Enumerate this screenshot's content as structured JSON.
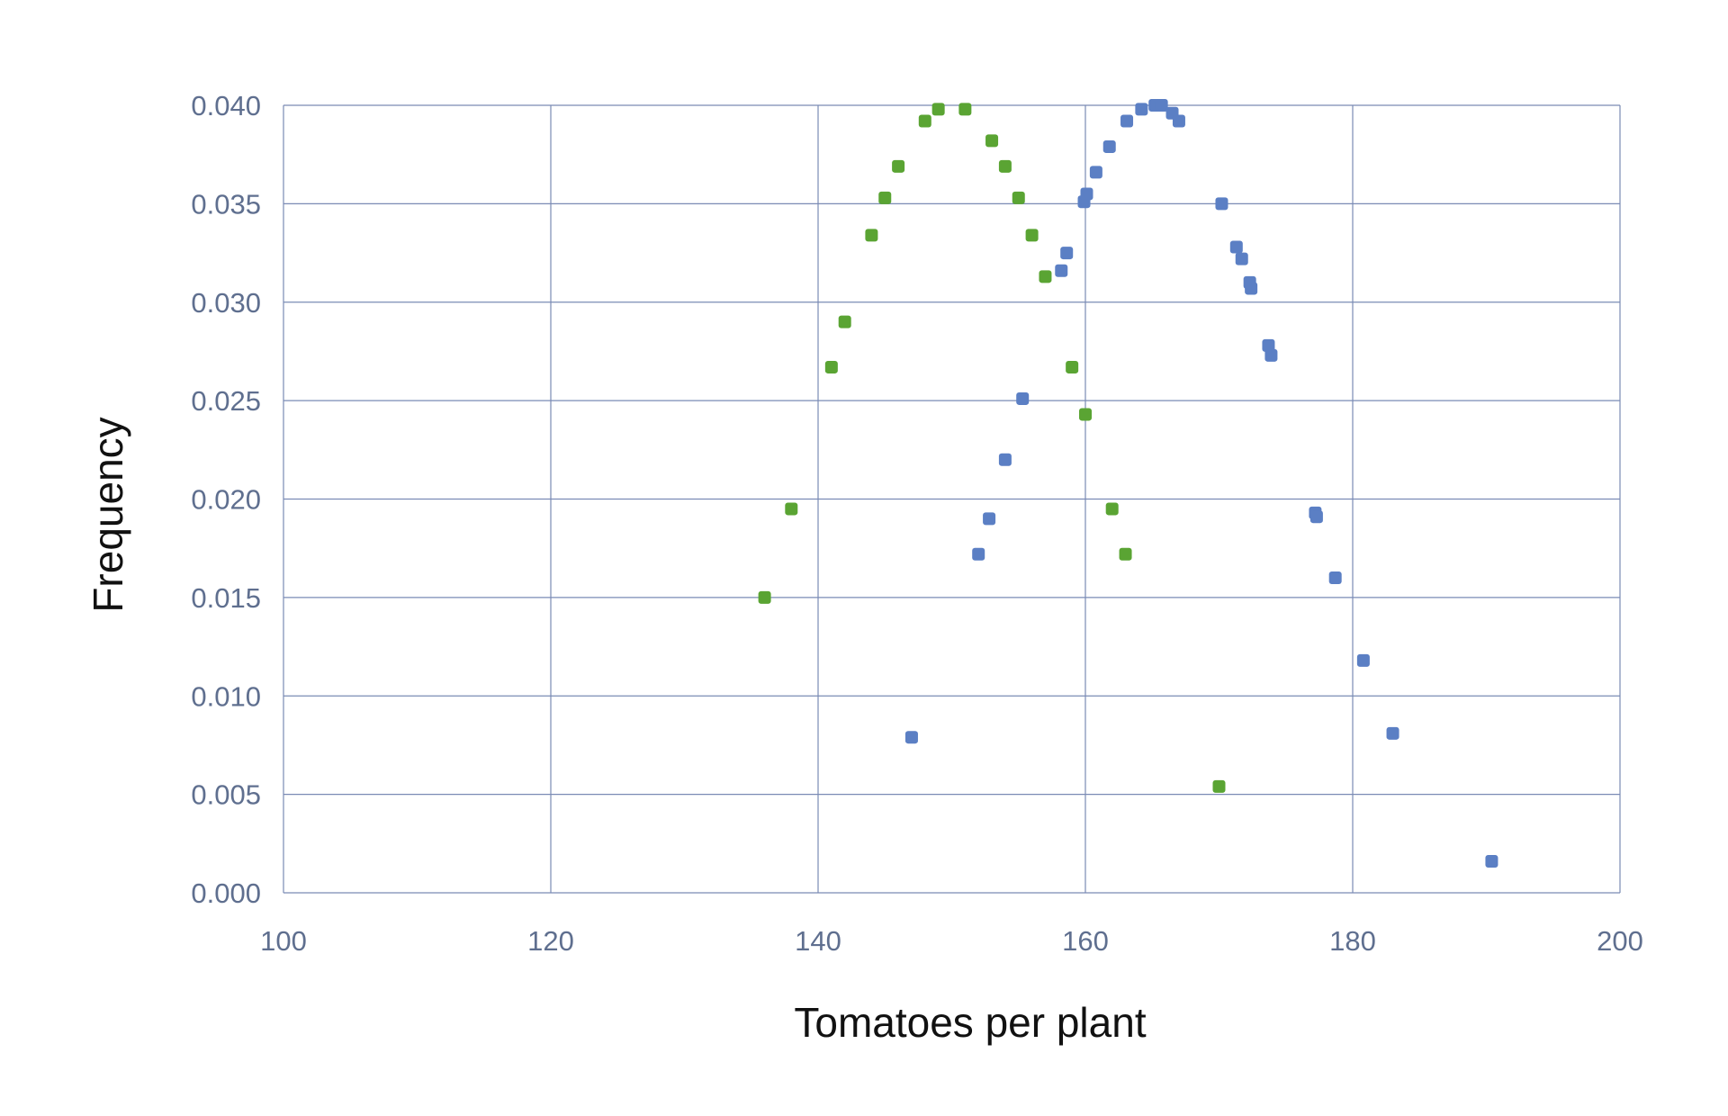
{
  "chart_data": {
    "type": "scatter",
    "title": "",
    "xlabel": "Tomatoes per plant",
    "ylabel": "Frequency",
    "xlim": [
      100,
      200
    ],
    "ylim": [
      0.0,
      0.04
    ],
    "grid": true,
    "x_ticks": [
      "100",
      "120",
      "140",
      "160",
      "180",
      "200"
    ],
    "y_ticks": [
      "0.000",
      "0.005",
      "0.010",
      "0.015",
      "0.020",
      "0.025",
      "0.030",
      "0.035",
      "0.040"
    ],
    "series": [
      {
        "color": "#5aa433",
        "points": [
          [
            136.0,
            0.015
          ],
          [
            138.0,
            0.0195
          ],
          [
            141.0,
            0.0267
          ],
          [
            142.0,
            0.029
          ],
          [
            144.0,
            0.0334
          ],
          [
            145.0,
            0.0353
          ],
          [
            146.0,
            0.0369
          ],
          [
            148.0,
            0.0392
          ],
          [
            149.0,
            0.0398
          ],
          [
            151.0,
            0.0398
          ],
          [
            153.0,
            0.0382
          ],
          [
            154.0,
            0.0369
          ],
          [
            155.0,
            0.0353
          ],
          [
            156.0,
            0.0334
          ],
          [
            157.0,
            0.0313
          ],
          [
            159.0,
            0.0267
          ],
          [
            160.0,
            0.0243
          ],
          [
            162.0,
            0.0195
          ],
          [
            163.0,
            0.0172
          ],
          [
            170.0,
            0.0054
          ]
        ]
      },
      {
        "color": "#5b7fc4",
        "points": [
          [
            147.0,
            0.0079
          ],
          [
            152.0,
            0.0172
          ],
          [
            152.8,
            0.019
          ],
          [
            154.0,
            0.022
          ],
          [
            155.3,
            0.0251
          ],
          [
            158.2,
            0.0316
          ],
          [
            158.6,
            0.0325
          ],
          [
            159.9,
            0.0351
          ],
          [
            160.1,
            0.0355
          ],
          [
            160.8,
            0.0366
          ],
          [
            161.8,
            0.0379
          ],
          [
            163.1,
            0.0392
          ],
          [
            164.2,
            0.0398
          ],
          [
            165.2,
            0.04
          ],
          [
            165.7,
            0.04
          ],
          [
            166.5,
            0.0396
          ],
          [
            167.0,
            0.0392
          ],
          [
            170.2,
            0.035
          ],
          [
            171.3,
            0.0328
          ],
          [
            171.7,
            0.0322
          ],
          [
            172.3,
            0.031
          ],
          [
            172.4,
            0.0307
          ],
          [
            173.7,
            0.0278
          ],
          [
            173.9,
            0.0273
          ],
          [
            177.2,
            0.0193
          ],
          [
            177.3,
            0.0191
          ],
          [
            178.7,
            0.016
          ],
          [
            180.8,
            0.0118
          ],
          [
            183.0,
            0.0081
          ],
          [
            190.4,
            0.0016
          ]
        ]
      }
    ]
  }
}
